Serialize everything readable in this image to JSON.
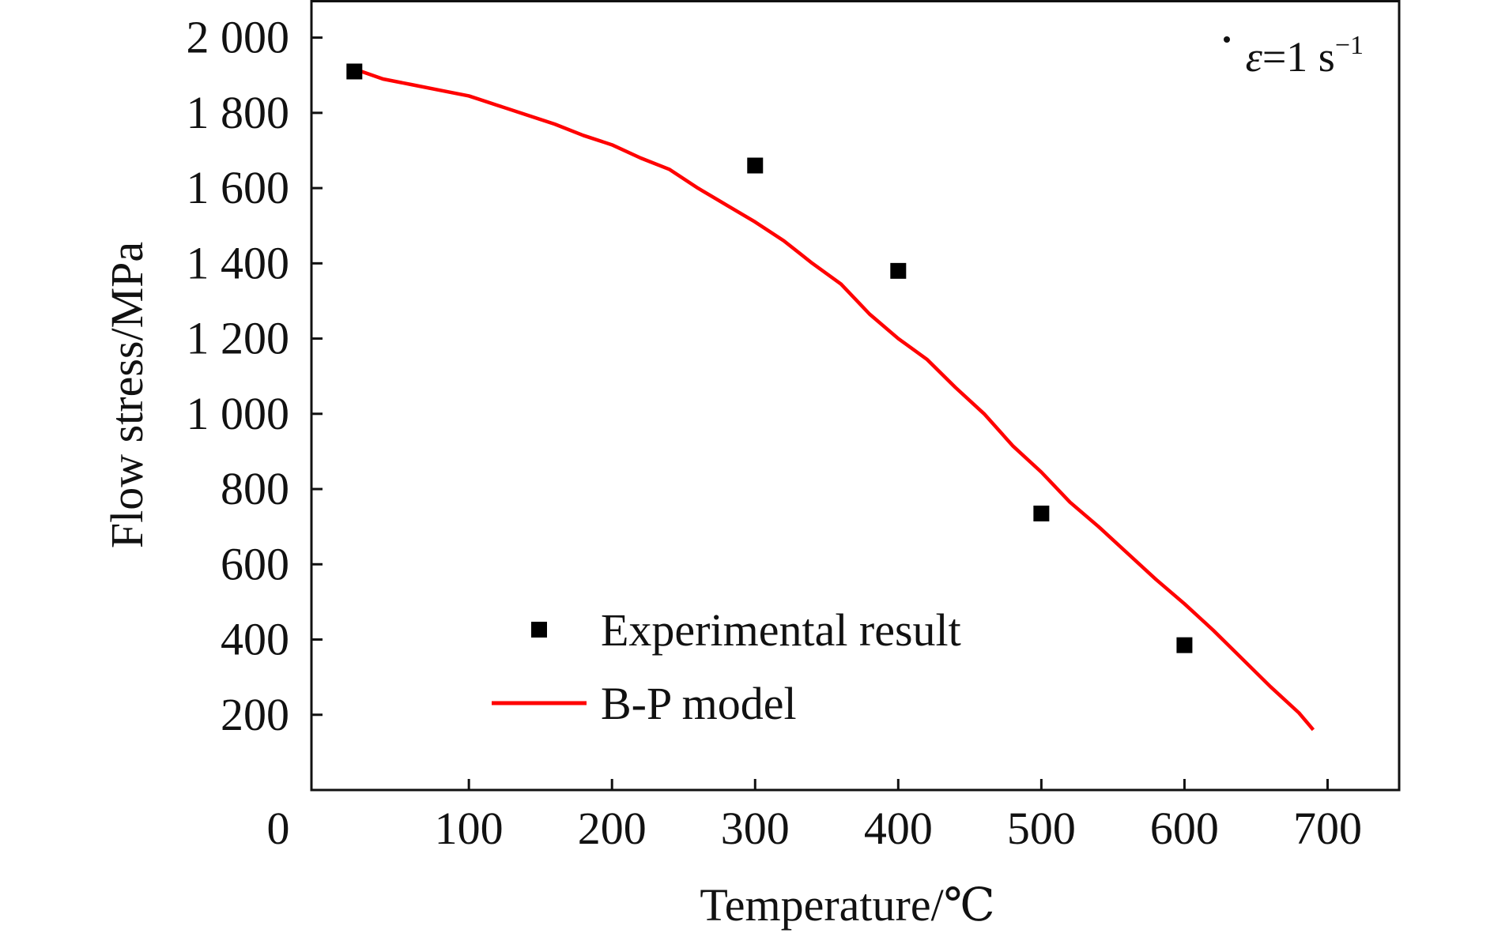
{
  "chart_data": {
    "type": "scatter",
    "xlabel": "Temperature/℃",
    "ylabel": "Flow stress/MPa",
    "xlim": [
      -10,
      750
    ],
    "ylim": [
      0,
      2100
    ],
    "x_ticks": [
      100,
      200,
      300,
      400,
      500,
      600,
      700
    ],
    "x_tick_labels": [
      "100",
      "200",
      "300",
      "400",
      "500",
      "600",
      "700"
    ],
    "y_ticks": [
      200,
      400,
      600,
      800,
      1000,
      1200,
      1400,
      1600,
      1800,
      2000
    ],
    "y_tick_labels": [
      "200",
      "400",
      "600",
      "800",
      "1 000",
      "1 200",
      "1 400",
      "1 600",
      "1 800",
      "2 000"
    ],
    "origin_label": "0",
    "annotation": {
      "symbol": "ε",
      "text": "=1 s",
      "superscript": "−1"
    },
    "legend_position": "bottom-center",
    "grid": false,
    "series": [
      {
        "name": "Experimental result",
        "type": "scatter",
        "marker": "square",
        "color": "#000000",
        "x": [
          20,
          300,
          400,
          500,
          600
        ],
        "y": [
          1910,
          1660,
          1380,
          735,
          385
        ]
      },
      {
        "name": "B-P model",
        "type": "line",
        "color": "#ff0000",
        "x": [
          25,
          40,
          60,
          80,
          100,
          120,
          140,
          160,
          180,
          200,
          220,
          240,
          260,
          280,
          300,
          320,
          340,
          360,
          380,
          400,
          420,
          440,
          460,
          480,
          500,
          520,
          540,
          560,
          580,
          600,
          620,
          640,
          660,
          680,
          690
        ],
        "y": [
          1910,
          1890,
          1875,
          1860,
          1845,
          1820,
          1795,
          1770,
          1740,
          1715,
          1680,
          1650,
          1600,
          1555,
          1510,
          1460,
          1400,
          1345,
          1265,
          1200,
          1145,
          1070,
          1000,
          915,
          845,
          765,
          700,
          630,
          560,
          495,
          425,
          350,
          275,
          205,
          160
        ]
      }
    ]
  }
}
